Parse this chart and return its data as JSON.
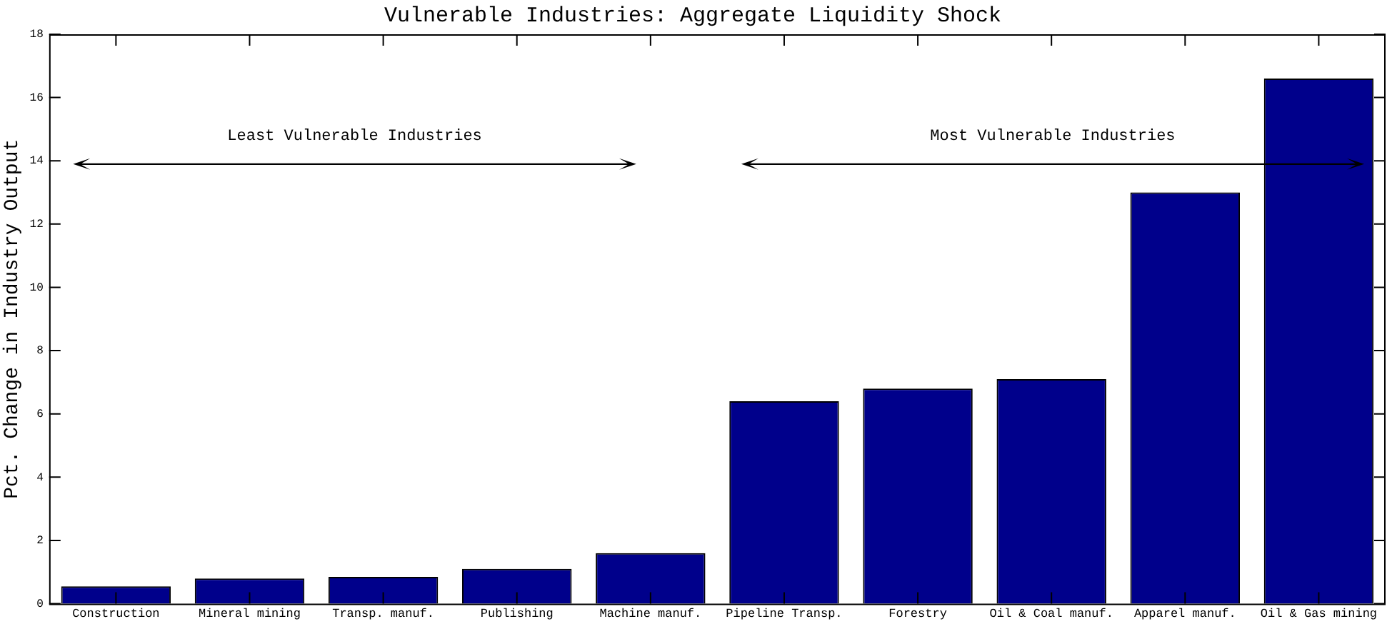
{
  "chart_data": {
    "type": "bar",
    "title": "Vulnerable Industries: Aggregate Liquidity Shock",
    "ylabel": "Pct. Change in Industry Output",
    "categories": [
      "Construction",
      "Mineral mining",
      "Transp. manuf.",
      "Publishing",
      "Machine manuf.",
      "Pipeline Transp.",
      "Forestry",
      "Oil & Coal manuf.",
      "Apparel manuf.",
      "Oil & Gas mining"
    ],
    "values": [
      0.55,
      0.8,
      0.85,
      1.1,
      1.6,
      6.4,
      6.8,
      7.1,
      13,
      16.6
    ],
    "color": "#00008b",
    "ylim": [
      0,
      18
    ],
    "yticks": [
      0,
      2,
      4,
      6,
      8,
      10,
      12,
      14,
      16,
      18
    ],
    "grid": false,
    "legend": false,
    "annotations": [
      "Least Vulnerable Industries",
      "Most Vulnerable Industries"
    ]
  }
}
